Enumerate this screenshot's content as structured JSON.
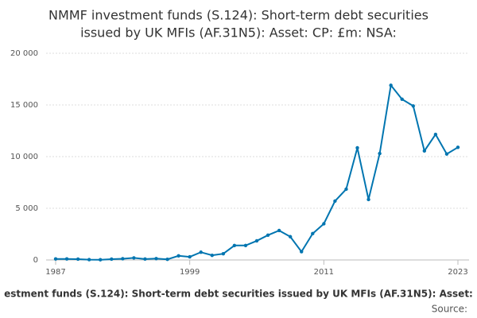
{
  "chart_data": {
    "type": "line",
    "title": [
      "NMMF investment funds (S.124): Short-term debt securities",
      "issued by UK MFIs (AF.31N5): Asset: CP: £m: NSA:"
    ],
    "x_label": "estment funds (S.124): Short-term debt securities issued by UK MFIs (AF.31N5): Asset:",
    "source": "Source:",
    "x": [
      1987,
      1988,
      1989,
      1990,
      1991,
      1992,
      1993,
      1994,
      1995,
      1996,
      1997,
      1998,
      1999,
      2000,
      2001,
      2002,
      2003,
      2004,
      2005,
      2006,
      2007,
      2008,
      2009,
      2010,
      2011,
      2012,
      2013,
      2014,
      2015,
      2016,
      2017,
      2018,
      2019,
      2020,
      2021,
      2022,
      2023
    ],
    "values": [
      100,
      100,
      80,
      30,
      20,
      80,
      120,
      200,
      90,
      130,
      60,
      400,
      300,
      750,
      450,
      600,
      1400,
      1400,
      1850,
      2400,
      2850,
      2250,
      800,
      2550,
      3500,
      5700,
      6850,
      10850,
      5850,
      10300,
      16900,
      15550,
      14900,
      10550,
      12150,
      10250,
      10900
    ],
    "color": "#0075b0",
    "xlim": [
      1987,
      2023
    ],
    "xticks": [
      1987,
      1999,
      2011,
      2023
    ],
    "ylim": [
      0,
      20000
    ],
    "yticks": [
      0,
      {
        "value": 5000,
        "label": "5 000"
      },
      {
        "value": 10000,
        "label": "10 000"
      },
      {
        "value": 15000,
        "label": "15 000"
      },
      {
        "value": 20000,
        "label": "20 000"
      }
    ],
    "grid": true
  }
}
